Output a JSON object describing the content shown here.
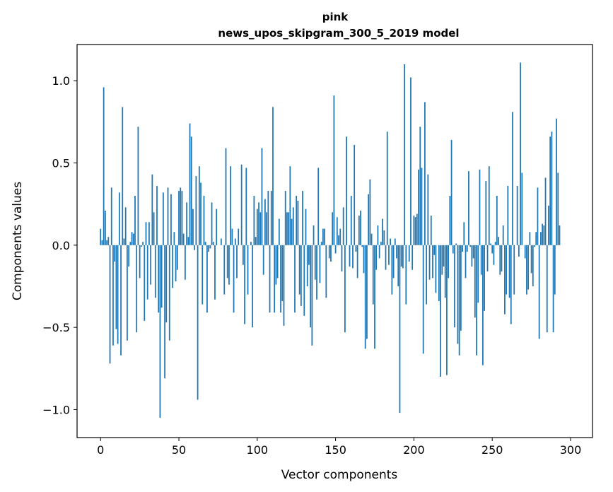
{
  "chart_data": {
    "type": "bar",
    "title": "pink",
    "subtitle": "news_upos_skipgram_300_5_2019 model",
    "xlabel": "Vector components",
    "ylabel": "Components values",
    "xlim": [
      -15,
      314
    ],
    "ylim": [
      -1.17,
      1.22
    ],
    "xticks": [
      0,
      50,
      100,
      150,
      200,
      250,
      300
    ],
    "xtick_labels": [
      "0",
      "50",
      "100",
      "150",
      "200",
      "250",
      "300"
    ],
    "yticks": [
      -1.0,
      -0.5,
      0.0,
      0.5,
      1.0
    ],
    "ytick_labels": [
      "−1.0",
      "−0.5",
      "0.0",
      "0.5",
      "1.0"
    ],
    "bar_color": "#1f77b4",
    "values": [
      0.1,
      0.03,
      0.96,
      0.21,
      0.03,
      0.05,
      -0.72,
      0.35,
      -0.61,
      -0.1,
      -0.51,
      -0.6,
      0.32,
      -0.67,
      0.84,
      0.04,
      0.23,
      -0.58,
      -0.13,
      0.02,
      0.08,
      0.07,
      0.3,
      -0.53,
      0.72,
      -0.2,
      -0.01,
      0.02,
      -0.46,
      0.14,
      -0.33,
      0.14,
      -0.24,
      0.43,
      0.2,
      -0.32,
      0.36,
      -0.41,
      -1.05,
      -0.38,
      0.32,
      -0.81,
      -0.47,
      0.35,
      -0.58,
      0.31,
      -0.26,
      0.08,
      -0.22,
      -0.15,
      0.33,
      0.35,
      0.33,
      0.07,
      -0.21,
      0.26,
      0.05,
      0.74,
      0.66,
      0.22,
      -0.03,
      0.42,
      -0.94,
      0.48,
      0.38,
      -0.36,
      0.3,
      0.02,
      -0.41,
      -0.04,
      -0.02,
      0.26,
      0.02,
      -0.33,
      0.22,
      0.0,
      0.0,
      0.04,
      0.0,
      -0.3,
      0.59,
      -0.2,
      -0.24,
      0.48,
      0.1,
      -0.41,
      0.04,
      -0.2,
      0.1,
      0.0,
      0.49,
      -0.12,
      -0.48,
      0.47,
      -0.3,
      0.0,
      0.02,
      -0.5,
      0.3,
      0.05,
      0.22,
      0.26,
      0.2,
      0.59,
      -0.18,
      0.28,
      0.2,
      0.33,
      -0.41,
      0.33,
      0.84,
      -0.41,
      -0.24,
      -0.2,
      0.16,
      -0.41,
      -0.34,
      -0.49,
      0.33,
      0.2,
      0.2,
      0.48,
      0.16,
      0.23,
      -0.41,
      0.3,
      0.27,
      -0.3,
      -0.37,
      0.33,
      -0.43,
      0.22,
      -0.25,
      -0.12,
      -0.5,
      -0.61,
      0.12,
      -0.21,
      -0.33,
      0.47,
      -0.23,
      0.02,
      0.1,
      0.1,
      -0.32,
      0.0,
      -0.08,
      -0.1,
      0.2,
      0.91,
      -0.05,
      0.17,
      0.06,
      0.1,
      -0.16,
      0.23,
      -0.53,
      0.66,
      0.0,
      -0.13,
      0.3,
      -0.14,
      0.61,
      -0.04,
      -0.2,
      0.18,
      0.21,
      -0.01,
      -0.17,
      -0.63,
      -0.57,
      0.31,
      0.4,
      0.07,
      -0.36,
      -0.63,
      -0.15,
      0.12,
      -0.08,
      0.02,
      0.16,
      0.09,
      -0.15,
      0.69,
      -0.12,
      0.04,
      -0.3,
      -0.2,
      0.04,
      -0.08,
      -0.25,
      -1.02,
      -0.13,
      -0.14,
      1.1,
      -0.36,
      0.0,
      -0.1,
      1.02,
      -0.15,
      0.18,
      0.17,
      0.19,
      0.46,
      0.72,
      0.47,
      -0.66,
      0.87,
      -0.36,
      0.43,
      -0.21,
      0.18,
      -0.2,
      -0.06,
      -0.29,
      0.0,
      -0.34,
      -0.8,
      -0.18,
      -0.13,
      -0.32,
      -0.79,
      -0.2,
      0.3,
      0.64,
      -0.05,
      -0.5,
      0.01,
      -0.6,
      -0.67,
      -0.52,
      -0.04,
      0.14,
      -0.2,
      -0.04,
      0.45,
      -0.01,
      -0.13,
      -0.08,
      -0.44,
      -0.67,
      -0.35,
      0.46,
      -0.18,
      -0.73,
      -0.4,
      0.39,
      -0.16,
      0.48,
      0.01,
      -0.05,
      -0.12,
      0.02,
      0.3,
      0.05,
      -0.18,
      -0.16,
      0.12,
      -0.42,
      -0.3,
      0.36,
      -0.32,
      -0.48,
      0.81,
      -0.3,
      0.0,
      0.36,
      -0.07,
      1.11,
      0.44,
      0.0,
      -0.08,
      -0.3,
      -0.27,
      0.08,
      -0.17,
      -0.25,
      -0.01,
      0.08,
      0.35,
      -0.57,
      0.08,
      0.13,
      0.12,
      0.41,
      -0.53,
      0.24,
      0.66,
      0.69,
      -0.53,
      -0.3,
      0.77,
      0.44,
      0.12
    ]
  }
}
